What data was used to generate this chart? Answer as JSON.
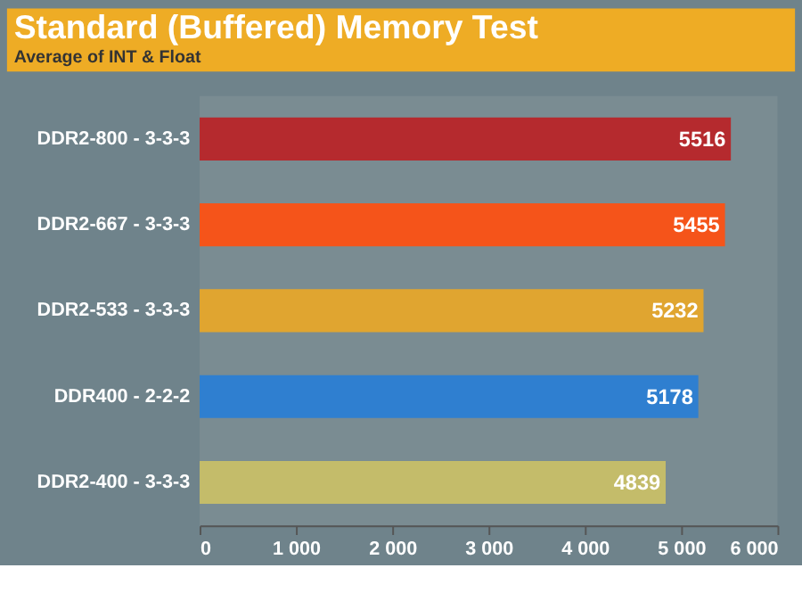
{
  "chart_data": {
    "type": "bar",
    "orientation": "horizontal",
    "title": "Standard (Buffered) Memory Test",
    "subtitle": "Average of INT & Float",
    "categories": [
      "DDR2-800 - 3-3-3",
      "DDR2-667 - 3-3-3",
      "DDR2-533 - 3-3-3",
      "DDR400 - 2-2-2",
      "DDR2-400 - 3-3-3"
    ],
    "values": [
      5516,
      5455,
      5232,
      5178,
      4839
    ],
    "colors": [
      "#b52a2e",
      "#f5541a",
      "#e0a530",
      "#2f7fd0",
      "#c4bc6a"
    ],
    "xlim": [
      0,
      6000
    ],
    "xticks": [
      0,
      {
        "value": 1000,
        "label": "1 000"
      },
      {
        "value": 2000,
        "label": "2 000"
      },
      {
        "value": 3000,
        "label": "3 000"
      },
      {
        "value": 4000,
        "label": "4 000"
      },
      {
        "value": 5000,
        "label": "5 000"
      },
      {
        "value": 6000,
        "label": "6 000"
      }
    ],
    "data_labels": true
  }
}
